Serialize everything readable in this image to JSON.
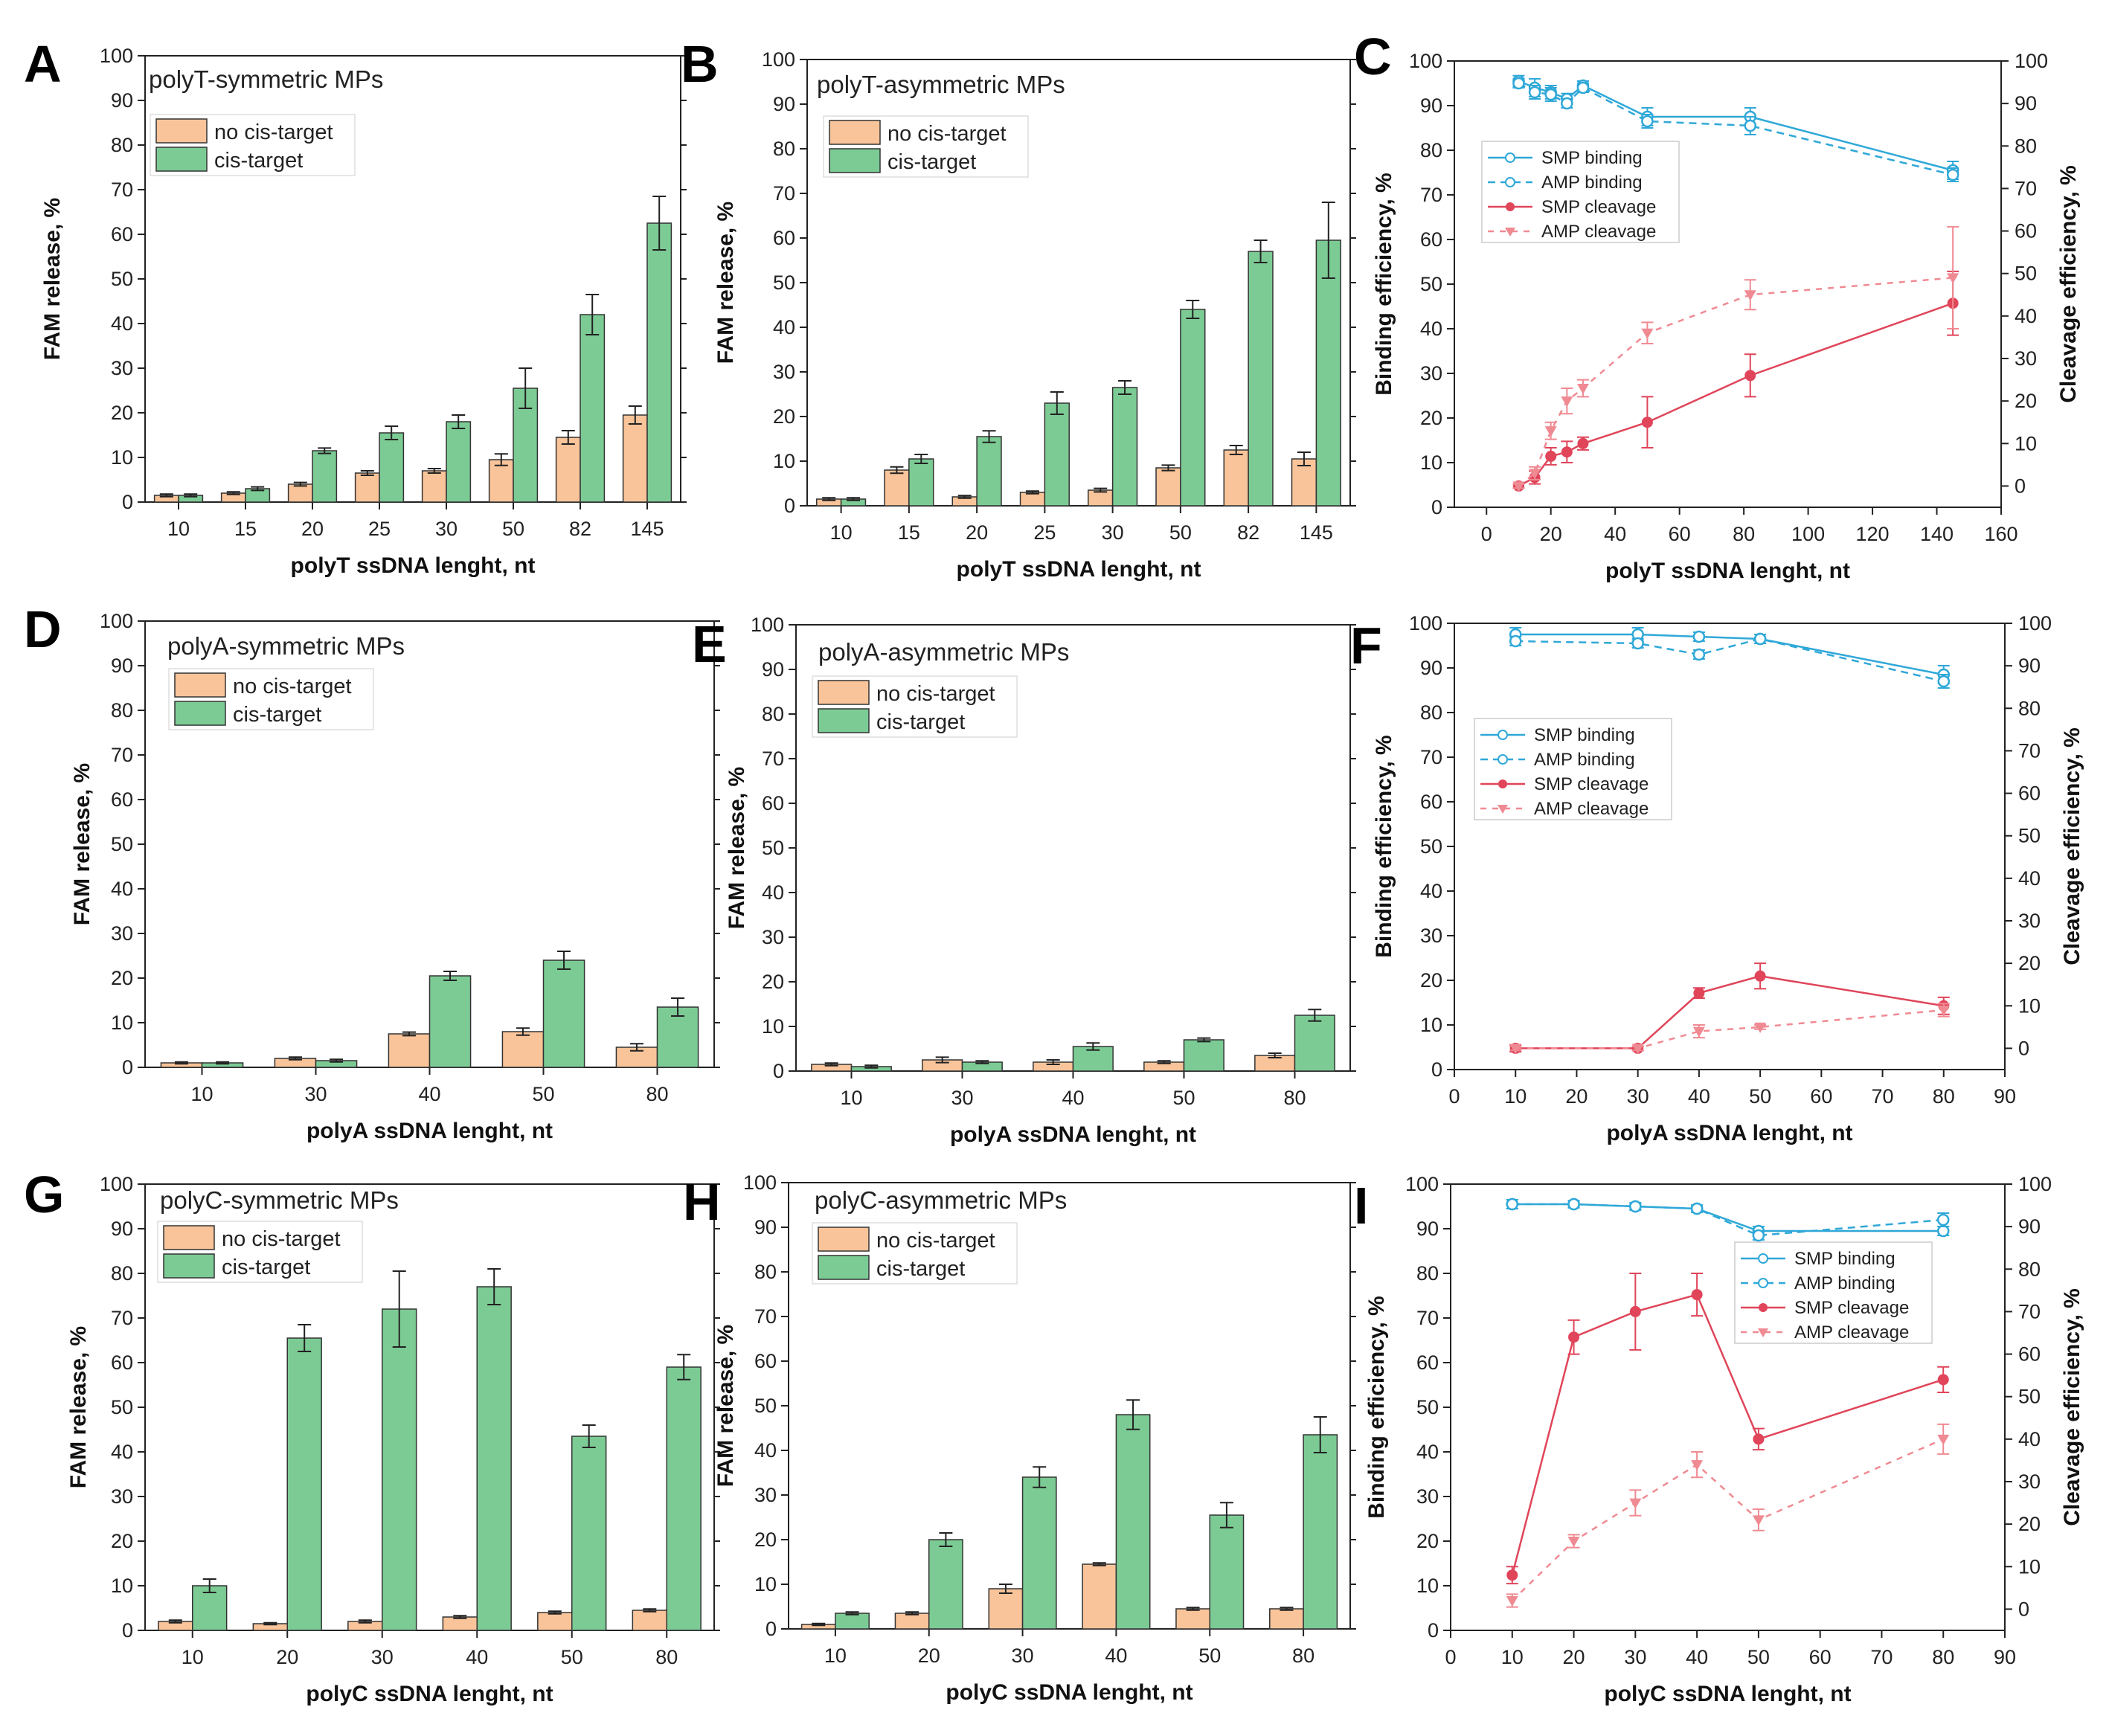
{
  "colors": {
    "no_cis": "#F9C49A",
    "cis": "#7CCB95",
    "bar_edge": "#333333",
    "binding": "#2FA8D8",
    "cleavage": "#E0455A",
    "cleavage_light": "#F08A92"
  },
  "legend_bar": {
    "no_cis": "no cis-target",
    "cis": "cis-target"
  },
  "legend_line": {
    "smp_binding": "SMP binding",
    "amp_binding": "AMP binding",
    "smp_cleavage": "SMP cleavage",
    "amp_cleavage": "AMP cleavage"
  },
  "chart_data": [
    {
      "panel": "A",
      "type": "bar",
      "title": "polyT-symmetric MPs",
      "xlabel": "polyT ssDNA lenght, nt",
      "ylabel": "FAM release, %",
      "ylim": [
        0,
        100
      ],
      "yticks": [
        0,
        10,
        20,
        30,
        40,
        50,
        60,
        70,
        80,
        90,
        100
      ],
      "categories": [
        "10",
        "15",
        "20",
        "25",
        "30",
        "50",
        "82",
        "145"
      ],
      "series": [
        {
          "name": "no cis-target",
          "values": [
            1.5,
            2,
            4,
            6.5,
            7,
            9.5,
            14.5,
            19.5
          ],
          "errors": [
            0.3,
            0.3,
            0.4,
            0.5,
            0.5,
            1.3,
            1.5,
            2
          ]
        },
        {
          "name": "cis-target",
          "values": [
            1.5,
            3,
            11.5,
            15.5,
            18,
            25.5,
            42,
            62.5
          ],
          "errors": [
            0.3,
            0.4,
            0.6,
            1.5,
            1.5,
            4.5,
            4.5,
            6
          ]
        }
      ]
    },
    {
      "panel": "B",
      "type": "bar",
      "title": "polyT-asymmetric MPs",
      "xlabel": "polyT ssDNA lenght, nt",
      "ylabel": "FAM release, %",
      "ylim": [
        0,
        100
      ],
      "yticks": [
        0,
        10,
        20,
        30,
        40,
        50,
        60,
        70,
        80,
        90,
        100
      ],
      "categories": [
        "10",
        "15",
        "20",
        "25",
        "30",
        "50",
        "82",
        "145"
      ],
      "series": [
        {
          "name": "no cis-target",
          "values": [
            1.5,
            8,
            2,
            3,
            3.5,
            8.5,
            12.5,
            10.5
          ],
          "errors": [
            0.3,
            0.7,
            0.3,
            0.3,
            0.4,
            0.6,
            1,
            1.5
          ]
        },
        {
          "name": "cis-target",
          "values": [
            1.5,
            10.5,
            15.5,
            23,
            26.5,
            44,
            57,
            59.5
          ],
          "errors": [
            0.3,
            1,
            1.3,
            2.5,
            1.5,
            2,
            2.5,
            8.5
          ]
        }
      ]
    },
    {
      "panel": "C",
      "type": "line",
      "xlabel": "polyT ssDNA lenght, nt",
      "ylabel": "Binding efficiency, %",
      "y2label": "Cleavage efficiency, %",
      "xlim": [
        -10,
        160
      ],
      "xticks": [
        0,
        20,
        40,
        60,
        80,
        100,
        120,
        140,
        160
      ],
      "ylim": [
        0,
        100
      ],
      "yticks": [
        0,
        10,
        20,
        30,
        40,
        50,
        60,
        70,
        80,
        90,
        100
      ],
      "y2lim": [
        -5,
        100
      ],
      "y2ticks": [
        0,
        10,
        20,
        30,
        40,
        50,
        60,
        70,
        80,
        90,
        100
      ],
      "series": [
        {
          "name": "SMP binding",
          "axis": "left",
          "x": [
            10,
            15,
            20,
            25,
            30,
            50,
            82,
            145
          ],
          "y": [
            95.5,
            94,
            93,
            91.5,
            94.5,
            87.5,
            87.5,
            75.5
          ],
          "errors": [
            1.2,
            2,
            1.5,
            1.2,
            1,
            2,
            2,
            2
          ]
        },
        {
          "name": "AMP binding",
          "axis": "left",
          "x": [
            10,
            15,
            20,
            25,
            30,
            50,
            82,
            145
          ],
          "y": [
            95,
            93,
            92.5,
            90.5,
            94,
            86.5,
            85.5,
            74.5
          ],
          "errors": [
            1,
            1.5,
            1.5,
            1,
            1,
            1.5,
            2,
            1.5
          ]
        },
        {
          "name": "SMP cleavage",
          "axis": "right",
          "x": [
            10,
            15,
            20,
            25,
            30,
            50,
            82,
            145
          ],
          "y": [
            0,
            2,
            7,
            8,
            10,
            15,
            26,
            43
          ],
          "errors": [
            0.5,
            1.5,
            2,
            2.5,
            1.5,
            6,
            5,
            7.5
          ]
        },
        {
          "name": "AMP cleavage",
          "axis": "right",
          "x": [
            10,
            15,
            20,
            25,
            30,
            50,
            82,
            145
          ],
          "y": [
            0,
            3,
            13,
            20,
            23,
            36,
            45,
            49
          ],
          "errors": [
            0.5,
            1.5,
            2,
            3,
            2,
            2.5,
            3.5,
            12
          ]
        }
      ]
    },
    {
      "panel": "D",
      "type": "bar",
      "title": "polyA-symmetric MPs",
      "xlabel": "polyA ssDNA lenght, nt",
      "ylabel": "FAM release, %",
      "ylim": [
        0,
        100
      ],
      "yticks": [
        0,
        10,
        20,
        30,
        40,
        50,
        60,
        70,
        80,
        90,
        100
      ],
      "categories": [
        "10",
        "30",
        "40",
        "50",
        "80"
      ],
      "series": [
        {
          "name": "no cis-target",
          "values": [
            1,
            2,
            7.5,
            8,
            4.5
          ],
          "errors": [
            0.2,
            0.3,
            0.4,
            0.8,
            0.8
          ]
        },
        {
          "name": "cis-target",
          "values": [
            1,
            1.5,
            20.5,
            24,
            13.5
          ],
          "errors": [
            0.2,
            0.3,
            1,
            2,
            2
          ]
        }
      ]
    },
    {
      "panel": "E",
      "type": "bar",
      "title": "polyA-asymmetric MPs",
      "xlabel": "polyA ssDNA lenght, nt",
      "ylabel": "FAM release, %",
      "ylim": [
        0,
        100
      ],
      "yticks": [
        0,
        10,
        20,
        30,
        40,
        50,
        60,
        70,
        80,
        90,
        100
      ],
      "categories": [
        "10",
        "30",
        "40",
        "50",
        "80"
      ],
      "series": [
        {
          "name": "no cis-target",
          "values": [
            1.5,
            2.5,
            2,
            2,
            3.5
          ],
          "errors": [
            0.3,
            0.6,
            0.5,
            0.3,
            0.5
          ]
        },
        {
          "name": "cis-target",
          "values": [
            1,
            2,
            5.5,
            7,
            12.5
          ],
          "errors": [
            0.3,
            0.3,
            0.8,
            0.4,
            1.3
          ]
        }
      ]
    },
    {
      "panel": "F",
      "type": "line",
      "xlabel": "polyA ssDNA lenght, nt",
      "ylabel": "Binding efficiency, %",
      "y2label": "Cleavage efficiency, %",
      "xlim": [
        0,
        90
      ],
      "xticks": [
        0,
        10,
        20,
        30,
        40,
        50,
        60,
        70,
        80,
        90
      ],
      "ylim": [
        0,
        100
      ],
      "yticks": [
        0,
        10,
        20,
        30,
        40,
        50,
        60,
        70,
        80,
        90,
        100
      ],
      "y2lim": [
        -5,
        100
      ],
      "y2ticks": [
        0,
        10,
        20,
        30,
        40,
        50,
        60,
        70,
        80,
        90,
        100
      ],
      "series": [
        {
          "name": "SMP binding",
          "axis": "left",
          "x": [
            10,
            30,
            40,
            50,
            80
          ],
          "y": [
            97.5,
            97.5,
            97,
            96.5,
            88.5
          ],
          "errors": [
            1.5,
            1.5,
            1,
            1,
            2
          ]
        },
        {
          "name": "AMP binding",
          "axis": "left",
          "x": [
            10,
            30,
            40,
            50,
            80
          ],
          "y": [
            96,
            95.5,
            93,
            96.5,
            87
          ],
          "errors": [
            1,
            1,
            1,
            1,
            1.5
          ]
        },
        {
          "name": "SMP cleavage",
          "axis": "right",
          "x": [
            10,
            30,
            40,
            50,
            80
          ],
          "y": [
            0,
            0,
            13,
            17,
            10
          ],
          "errors": [
            0.8,
            0.5,
            1.2,
            3,
            2
          ]
        },
        {
          "name": "AMP cleavage",
          "axis": "right",
          "x": [
            10,
            30,
            40,
            50,
            80
          ],
          "y": [
            0,
            0,
            4,
            5,
            9
          ],
          "errors": [
            0.5,
            0.5,
            1.5,
            0.5,
            1.5
          ]
        }
      ]
    },
    {
      "panel": "G",
      "type": "bar",
      "title": "polyC-symmetric MPs",
      "xlabel": "polyC ssDNA lenght, nt",
      "ylabel": "FAM release, %",
      "ylim": [
        0,
        100
      ],
      "yticks": [
        0,
        10,
        20,
        30,
        40,
        50,
        60,
        70,
        80,
        90,
        100
      ],
      "categories": [
        "10",
        "20",
        "30",
        "40",
        "50",
        "80"
      ],
      "series": [
        {
          "name": "no cis-target",
          "values": [
            2,
            1.5,
            2,
            3,
            4,
            4.5
          ],
          "errors": [
            0.3,
            0.2,
            0.3,
            0.3,
            0.3,
            0.3
          ]
        },
        {
          "name": "cis-target",
          "values": [
            10,
            65.5,
            72,
            77,
            43.5,
            59
          ],
          "errors": [
            1.5,
            3,
            8.5,
            4,
            2.5,
            2.8
          ]
        }
      ]
    },
    {
      "panel": "H",
      "type": "bar",
      "title": "polyC-asymmetric MPs",
      "xlabel": "polyC ssDNA lenght, nt",
      "ylabel": "FAM release, %",
      "ylim": [
        0,
        100
      ],
      "yticks": [
        0,
        10,
        20,
        30,
        40,
        50,
        60,
        70,
        80,
        90,
        100
      ],
      "categories": [
        "10",
        "20",
        "30",
        "40",
        "50",
        "80"
      ],
      "series": [
        {
          "name": "no cis-target",
          "values": [
            1,
            3.5,
            9,
            14.5,
            4.5,
            4.5
          ],
          "errors": [
            0.2,
            0.3,
            1,
            0.3,
            0.3,
            0.3
          ]
        },
        {
          "name": "cis-target",
          "values": [
            3.5,
            20,
            34,
            48,
            25.5,
            43.5
          ],
          "errors": [
            0.3,
            1.5,
            2.3,
            3.3,
            2.8,
            4
          ]
        }
      ]
    },
    {
      "panel": "I",
      "type": "line",
      "xlabel": "polyC ssDNA lenght, nt",
      "ylabel": "Binding efficiency, %",
      "y2label": "Cleavage efficiency, %",
      "xlim": [
        0,
        90
      ],
      "xticks": [
        0,
        10,
        20,
        30,
        40,
        50,
        60,
        70,
        80,
        90
      ],
      "ylim": [
        0,
        100
      ],
      "yticks": [
        0,
        10,
        20,
        30,
        40,
        50,
        60,
        70,
        80,
        90,
        100
      ],
      "y2lim": [
        -5,
        100
      ],
      "y2ticks": [
        0,
        10,
        20,
        30,
        40,
        50,
        60,
        70,
        80,
        90,
        100
      ],
      "series": [
        {
          "name": "SMP binding",
          "axis": "left",
          "x": [
            10,
            20,
            30,
            40,
            50,
            80
          ],
          "y": [
            95.5,
            95.5,
            95,
            94.5,
            89.5,
            89.5
          ],
          "errors": [
            1,
            0.8,
            0.8,
            0.8,
            1,
            1
          ]
        },
        {
          "name": "AMP binding",
          "axis": "left",
          "x": [
            10,
            20,
            30,
            40,
            50,
            80
          ],
          "y": [
            95.5,
            95.5,
            95,
            94.5,
            88.5,
            92
          ],
          "errors": [
            1,
            0.8,
            0.8,
            0.8,
            1,
            1.5
          ]
        },
        {
          "name": "SMP cleavage",
          "axis": "right",
          "x": [
            10,
            20,
            30,
            40,
            50,
            80
          ],
          "y": [
            8,
            64,
            70,
            74,
            40,
            54
          ],
          "errors": [
            2,
            4,
            9,
            5,
            2.5,
            3
          ]
        },
        {
          "name": "AMP cleavage",
          "axis": "right",
          "x": [
            10,
            20,
            30,
            40,
            50,
            80
          ],
          "y": [
            2,
            16,
            25,
            34,
            21,
            40
          ],
          "errors": [
            1.5,
            1.5,
            3,
            3,
            2.5,
            3.5
          ]
        }
      ]
    }
  ]
}
